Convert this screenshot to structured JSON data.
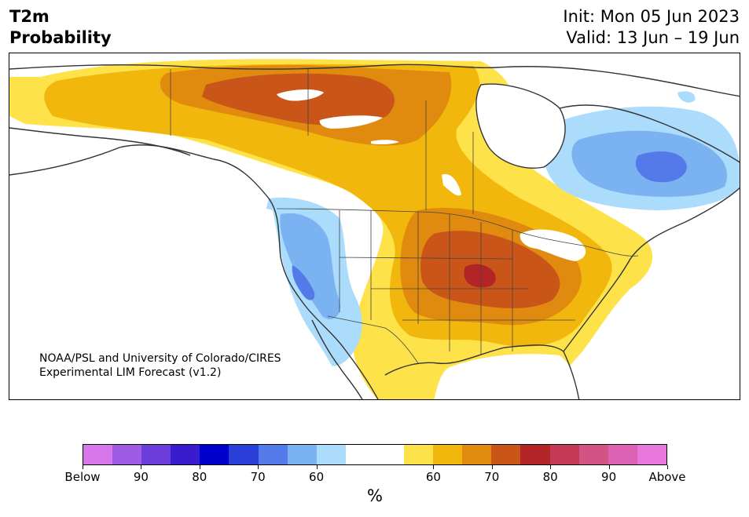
{
  "header": {
    "title_line1": "T2m",
    "title_line2": "Probability",
    "init": "Init: Mon 05 Jun 2023",
    "valid": "Valid: 13 Jun – 19 Jun"
  },
  "map": {
    "credit_line1": "NOAA/PSL and University of Colorado/CIRES",
    "credit_line2": "Experimental LIM Forecast (v1.2)"
  },
  "legend": {
    "colors": [
      "#d877ec",
      "#9f5ae6",
      "#6d3ddb",
      "#3a1ccf",
      "#0000cd",
      "#2a3ed8",
      "#5479e8",
      "#7ab2f2",
      "#acdcfc",
      "#ffffff",
      "#ffffff",
      "#fee24a",
      "#f2b70d",
      "#e08b0f",
      "#c95618",
      "#b22426",
      "#c43a56",
      "#d35384",
      "#dd61b3",
      "#e877dc"
    ],
    "tick_labels": [
      "Below",
      "90",
      "80",
      "70",
      "60",
      "60",
      "70",
      "80",
      "90",
      "Above"
    ],
    "unit": "%"
  },
  "colors": {
    "ocean_land": "#ffffff",
    "coast": "#333333",
    "warm_60": "#fee24a",
    "warm_65": "#f2b70d",
    "warm_70": "#e08b0f",
    "warm_75": "#c95618",
    "warm_80": "#b22426",
    "cold_60": "#acdcfc",
    "cold_65": "#7ab2f2",
    "cold_70": "#5479e8"
  }
}
